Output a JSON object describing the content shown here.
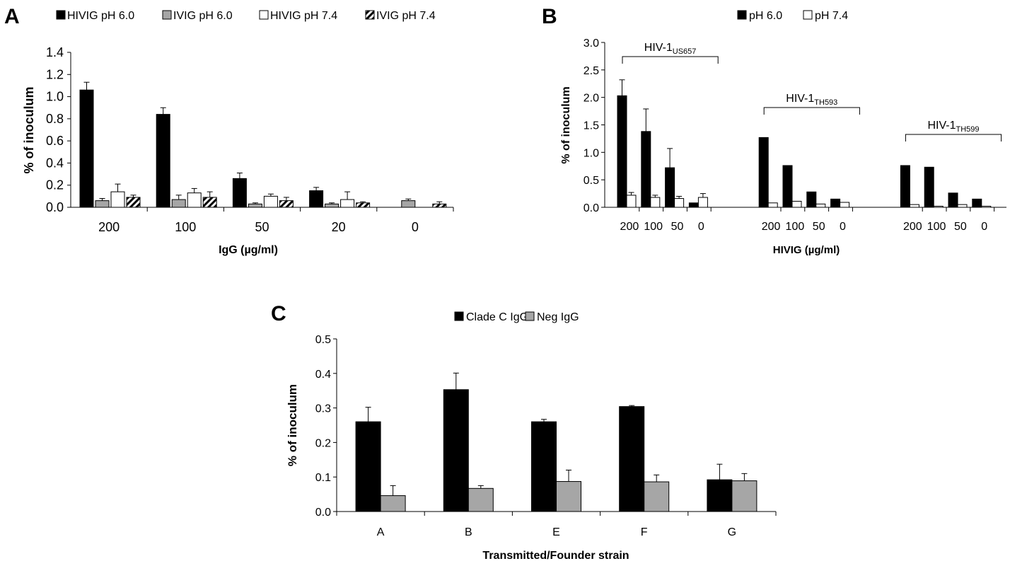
{
  "chart_data": [
    {
      "panel_letter": "A",
      "type": "bar",
      "xlabel": "IgG (µg/ml)",
      "ylabel": "% of inoculum",
      "ylim": [
        0,
        1.4
      ],
      "yticks": [
        "0.0",
        "0.2",
        "0.4",
        "0.6",
        "0.8",
        "1.0",
        "1.2",
        "1.4"
      ],
      "categories": [
        "200",
        "100",
        "50",
        "20",
        "0"
      ],
      "legend_position": "top",
      "series": [
        {
          "name": "HIVIG pH 6.0",
          "fill": "black",
          "values": [
            1.06,
            0.84,
            0.26,
            0.15,
            0
          ],
          "errors": [
            0.07,
            0.06,
            0.05,
            0.03,
            0
          ]
        },
        {
          "name": "IVIG pH 6.0",
          "fill": "gray",
          "values": [
            0.06,
            0.07,
            0.03,
            0.03,
            0.06
          ],
          "errors": [
            0.02,
            0.04,
            0.01,
            0.01,
            0.015
          ]
        },
        {
          "name": "HIVIG pH 7.4",
          "fill": "white",
          "values": [
            0.14,
            0.13,
            0.1,
            0.07,
            0
          ],
          "errors": [
            0.07,
            0.04,
            0.02,
            0.07,
            0
          ]
        },
        {
          "name": "IVIG pH 7.4",
          "fill": "hatched",
          "values": [
            0.09,
            0.09,
            0.06,
            0.04,
            0.03
          ],
          "errors": [
            0.02,
            0.05,
            0.03,
            0.01,
            0.02
          ]
        }
      ]
    },
    {
      "panel_letter": "B",
      "type": "bar",
      "xlabel": "HIVIG (µg/ml)",
      "ylabel": "% of inoculum",
      "ylim": [
        0,
        3.0
      ],
      "yticks": [
        "0.0",
        "0.5",
        "1.0",
        "1.5",
        "2.0",
        "2.5",
        "3.0"
      ],
      "legend_position": "top",
      "groups": [
        {
          "label_main": "HIV-1",
          "label_sub": "US657",
          "categories": [
            "200",
            "100",
            "50",
            "0"
          ]
        },
        {
          "label_main": "HIV-1",
          "label_sub": "TH593",
          "categories": [
            "200",
            "100",
            "50",
            "0"
          ]
        },
        {
          "label_main": "HIV-1",
          "label_sub": "TH599",
          "categories": [
            "200",
            "100",
            "50",
            "0"
          ]
        }
      ],
      "series": [
        {
          "name": "pH 6.0",
          "fill": "black",
          "values": [
            2.03,
            1.38,
            0.72,
            0.08,
            1.27,
            0.76,
            0.28,
            0.15,
            0.76,
            0.73,
            0.26,
            0.15
          ],
          "errors": [
            0.29,
            0.41,
            0.35,
            0,
            0,
            0,
            0,
            0,
            0,
            0,
            0,
            0
          ]
        },
        {
          "name": "pH 7.4",
          "fill": "white",
          "values": [
            0.22,
            0.18,
            0.16,
            0.18,
            0.08,
            0.11,
            0.06,
            0.09,
            0.05,
            0.02,
            0.05,
            0.02
          ],
          "errors": [
            0.05,
            0.04,
            0.04,
            0.07,
            0,
            0,
            0,
            0,
            0,
            0,
            0,
            0
          ]
        }
      ]
    },
    {
      "panel_letter": "C",
      "type": "bar",
      "xlabel": "Transmitted/Founder strain",
      "ylabel": "% of inoculum",
      "ylim": [
        0,
        0.5
      ],
      "yticks": [
        "0.0",
        "0.1",
        "0.2",
        "0.3",
        "0.4",
        "0.5"
      ],
      "categories": [
        "A",
        "B",
        "E",
        "F",
        "G"
      ],
      "legend_position": "top",
      "series": [
        {
          "name": "Clade C IgG",
          "fill": "black",
          "values": [
            0.26,
            0.353,
            0.26,
            0.304,
            0.092
          ],
          "errors": [
            0.042,
            0.048,
            0.007,
            0.003,
            0.045
          ]
        },
        {
          "name": "Neg IgG",
          "fill": "gray",
          "values": [
            0.046,
            0.067,
            0.087,
            0.086,
            0.089
          ],
          "errors": [
            0.029,
            0.008,
            0.033,
            0.02,
            0.021
          ]
        }
      ]
    }
  ]
}
